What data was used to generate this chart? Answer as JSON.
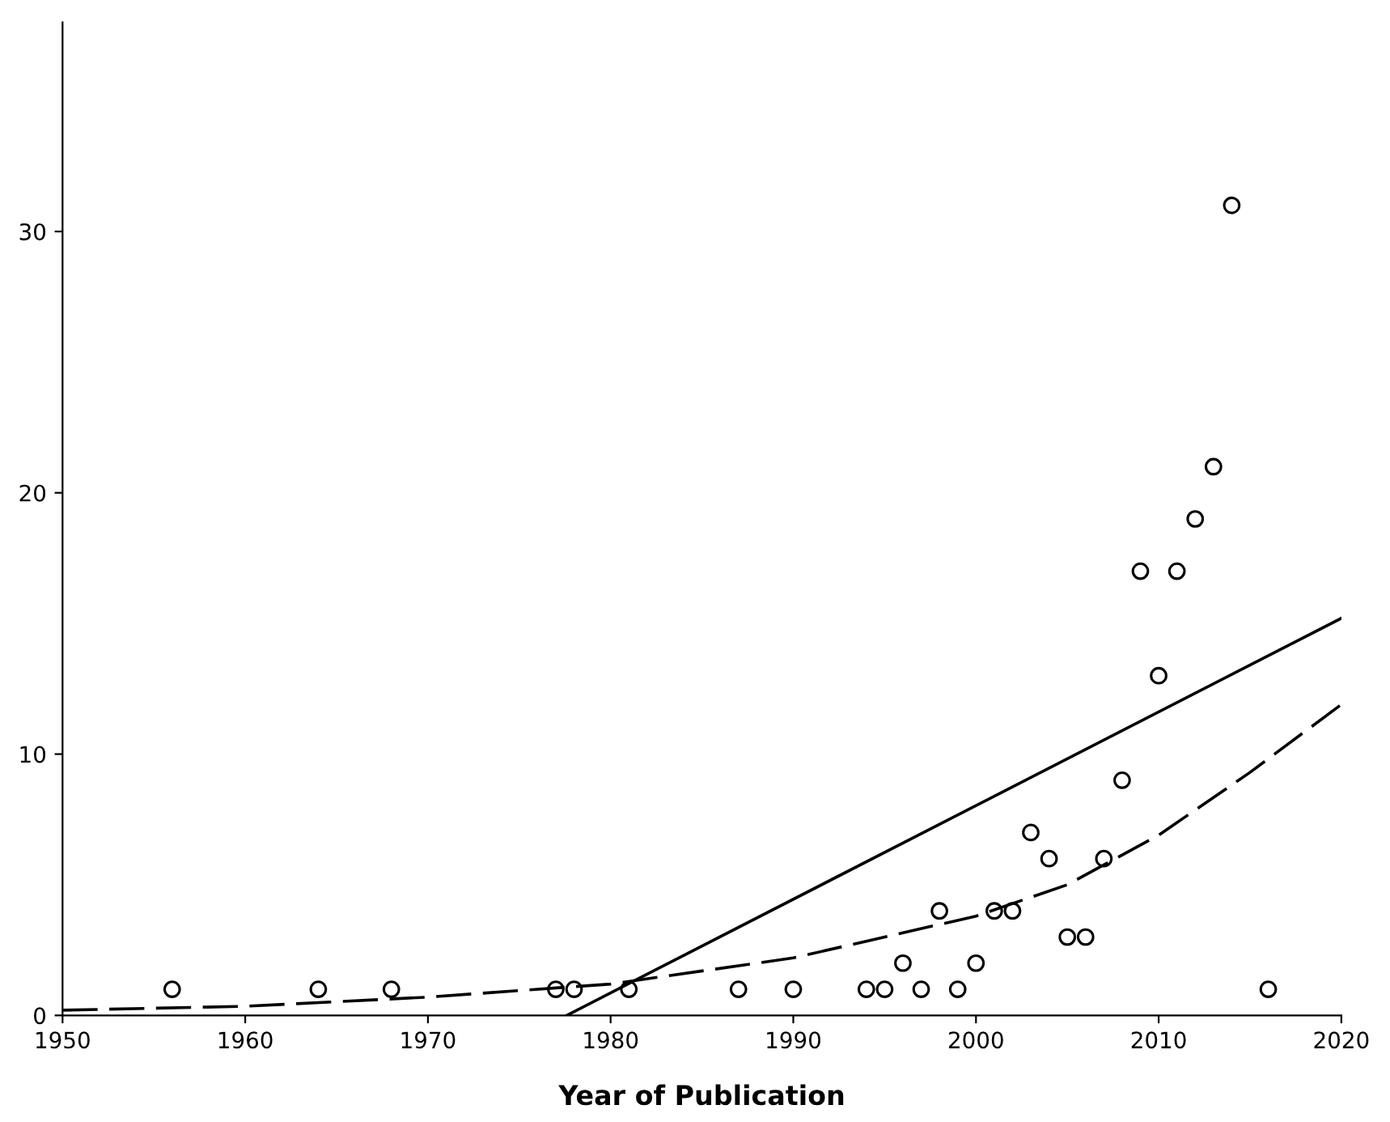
{
  "chart_data": {
    "type": "scatter",
    "xlabel": "Year of Publication",
    "xlim": [
      1950,
      2020
    ],
    "xticks": [
      1950,
      1960,
      1970,
      1980,
      1990,
      2000,
      2010,
      2020
    ],
    "ylim": [
      0,
      38
    ],
    "yticks": [
      0,
      10,
      20,
      30
    ],
    "grid": false,
    "legend": false,
    "series": [
      {
        "color": "#000000",
        "marker": "circle",
        "x": [
          1956,
          1964,
          1968,
          1977,
          1978,
          1981,
          1987,
          1990,
          1994,
          1995,
          1996,
          1997,
          1998,
          1999,
          2000,
          2001,
          2002,
          2003,
          2004,
          2005,
          2006,
          2007,
          2008,
          2009,
          2010,
          2011,
          2012,
          2013,
          2014,
          2016
        ],
        "values": [
          1,
          1,
          1,
          1,
          1,
          1,
          1,
          1,
          1,
          1,
          2,
          1,
          4,
          1,
          2,
          4,
          4,
          7,
          6,
          3,
          3,
          6,
          9,
          17,
          13,
          17,
          19,
          21,
          31,
          1
        ]
      },
      {
        "type": "line",
        "color": "#000000",
        "line_style": "solid",
        "x": [
          1977.6,
          2020
        ],
        "values": [
          0,
          15.2
        ]
      },
      {
        "type": "line",
        "color": "#000000",
        "line_style": "dashed",
        "x": [
          1950,
          1960,
          1970,
          1980,
          1990,
          2000,
          2005,
          2010,
          2015,
          2020
        ],
        "values": [
          0.2,
          0.35,
          0.7,
          1.2,
          2.2,
          3.8,
          5.0,
          6.9,
          9.3,
          11.9
        ]
      }
    ]
  }
}
